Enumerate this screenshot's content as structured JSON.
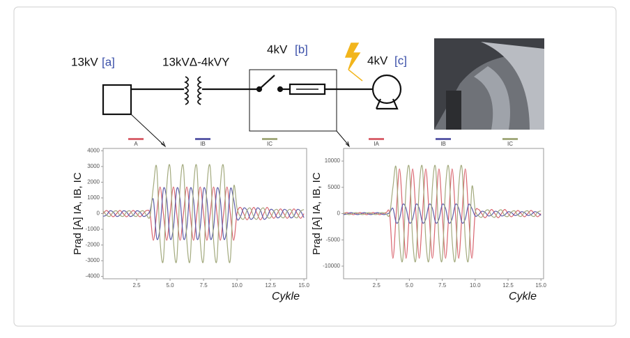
{
  "diagram": {
    "source_voltage": "13kV",
    "source_tag": "[a]",
    "transformer": "13kVΔ-4kVY",
    "switch_voltage": "4kV",
    "switch_tag": "[b]",
    "motor_voltage": "4kV",
    "motor_tag": "[c]"
  },
  "chart_data": [
    {
      "type": "line",
      "ylabel": "Prąd [A] IA, IB, IC",
      "xlabel": "Cykle",
      "x": [
        0,
        0.25,
        0.5,
        0.75,
        1,
        1.25,
        1.5,
        1.75,
        2,
        2.25,
        2.5,
        2.75,
        3,
        3.25,
        3.5,
        3.75,
        4,
        4.25,
        4.5,
        4.75,
        5,
        5.25,
        5.5,
        5.75,
        6,
        6.25,
        6.5,
        6.75,
        7,
        7.25,
        7.5,
        7.75,
        8,
        8.25,
        8.5,
        8.75,
        9,
        9.25,
        9.5,
        9.75,
        10,
        10.25,
        10.5,
        10.75,
        11,
        11.25,
        11.5,
        11.75,
        12,
        12.25,
        12.5,
        12.75,
        13,
        13.25,
        13.5,
        13.75,
        14,
        14.25,
        14.5,
        14.75,
        15
      ],
      "series": [
        {
          "name": "A",
          "color": "#d9646e",
          "values": [
            0,
            200,
            0,
            -200,
            0,
            200,
            0,
            -200,
            0,
            200,
            0,
            -200,
            0,
            200,
            0,
            -1700,
            0,
            1700,
            0,
            -1700,
            0,
            1700,
            0,
            -1700,
            0,
            1700,
            0,
            -1700,
            0,
            1700,
            0,
            -1700,
            0,
            1700,
            0,
            -1700,
            0,
            1700,
            0,
            -1700,
            0,
            400,
            0,
            -400,
            0,
            400,
            0,
            -400,
            0,
            400,
            0,
            -300,
            0,
            300,
            0,
            -300,
            0,
            300,
            0,
            -300,
            0
          ]
        },
        {
          "name": "IB",
          "color": "#5c5ca8",
          "values": [
            -173,
            -100,
            173,
            100,
            -173,
            -100,
            173,
            100,
            -173,
            -100,
            173,
            100,
            -173,
            -100,
            173,
            900,
            -1559,
            -900,
            1559,
            900,
            -1559,
            -900,
            1559,
            900,
            -1559,
            -900,
            1559,
            900,
            -1559,
            -900,
            1559,
            900,
            -1559,
            -900,
            1559,
            900,
            -1559,
            -900,
            1559,
            900,
            -346,
            -200,
            346,
            200,
            -346,
            -200,
            346,
            200,
            -346,
            -200,
            260,
            150,
            -260,
            -150,
            260,
            150,
            -260,
            -150,
            260,
            150,
            -260
          ]
        },
        {
          "name": "IC",
          "color": "#a3aa7e",
          "values": [
            173,
            -100,
            -173,
            100,
            173,
            -100,
            -173,
            100,
            173,
            -100,
            -173,
            100,
            173,
            -100,
            -173,
            1700,
            2944,
            -1700,
            -2944,
            1700,
            2944,
            -1700,
            -2944,
            1700,
            2944,
            -1700,
            -2944,
            1700,
            2944,
            -1700,
            -2944,
            1700,
            2944,
            -1700,
            -2944,
            1700,
            2944,
            -1700,
            -2944,
            1700,
            346,
            -200,
            -346,
            200,
            346,
            -200,
            -346,
            200,
            346,
            -200,
            -260,
            150,
            260,
            -150,
            -260,
            150,
            260,
            -150,
            -260,
            150,
            260
          ]
        }
      ],
      "xlim": [
        0,
        15.2
      ],
      "xticks": [
        {
          "value": 2.5,
          "label": "2.5"
        },
        {
          "value": 5,
          "label": "5.0"
        },
        {
          "value": 7.5,
          "label": "7.5"
        },
        {
          "value": 10,
          "label": "10.0"
        },
        {
          "value": 12.5,
          "label": "12.5"
        },
        {
          "value": 15,
          "label": "15.0"
        }
      ],
      "ylim": [
        -4150,
        4150
      ],
      "yticks": [
        -4000,
        -3000,
        -2000,
        -1000,
        0,
        1000,
        2000,
        3000,
        4000
      ]
    },
    {
      "type": "line",
      "ylabel": "Prąd [A] IA, IB, IC",
      "xlabel": "Cykle",
      "x": [
        0,
        0.25,
        0.5,
        0.75,
        1,
        1.25,
        1.5,
        1.75,
        2,
        2.25,
        2.5,
        2.75,
        3,
        3.25,
        3.5,
        3.75,
        4,
        4.25,
        4.5,
        4.75,
        5,
        5.25,
        5.5,
        5.75,
        6,
        6.25,
        6.5,
        6.75,
        7,
        7.25,
        7.5,
        7.75,
        8,
        8.25,
        8.5,
        8.75,
        9,
        9.25,
        9.5,
        9.75,
        10,
        10.25,
        10.5,
        10.75,
        11,
        11.25,
        11.5,
        11.75,
        12,
        12.25,
        12.5,
        12.75,
        13,
        13.25,
        13.5,
        13.75,
        14,
        14.25,
        14.5,
        14.75,
        15
      ],
      "series": [
        {
          "name": "IA",
          "color": "#d9646e",
          "values": [
            0,
            200,
            0,
            -200,
            0,
            200,
            0,
            -200,
            0,
            200,
            0,
            -200,
            0,
            200,
            0,
            -8500,
            0,
            8500,
            0,
            -8500,
            0,
            8500,
            0,
            -8500,
            0,
            8500,
            0,
            -8500,
            0,
            8500,
            0,
            -8500,
            0,
            8500,
            0,
            -8500,
            0,
            8500,
            0,
            -8500,
            0,
            800,
            0,
            -800,
            0,
            800,
            0,
            -800,
            0,
            800,
            0,
            -600,
            0,
            600,
            0,
            -600,
            0,
            600,
            0,
            -600,
            0
          ]
        },
        {
          "name": "IB",
          "color": "#5c5ca8",
          "values": [
            -173,
            -100,
            173,
            100,
            -173,
            -100,
            173,
            100,
            -173,
            -100,
            173,
            100,
            -173,
            -100,
            173,
            1000,
            -1732,
            -1000,
            1732,
            1000,
            -1732,
            -1000,
            1732,
            1000,
            -1732,
            -1000,
            1732,
            1000,
            -1732,
            -1000,
            1732,
            1000,
            -1732,
            -1000,
            1732,
            1000,
            -1732,
            -1000,
            1732,
            1000,
            -433,
            -250,
            433,
            250,
            -433,
            -250,
            433,
            250,
            -433,
            -250,
            346,
            200,
            -346,
            -200,
            346,
            200,
            -346,
            -200,
            346,
            200,
            -346
          ]
        },
        {
          "name": "IC",
          "color": "#a3aa7e",
          "values": [
            173,
            -100,
            -173,
            100,
            173,
            -100,
            -173,
            100,
            173,
            -100,
            -173,
            100,
            173,
            -100,
            -173,
            5000,
            8660,
            -5000,
            -8660,
            5000,
            8660,
            -5000,
            -8660,
            5000,
            8660,
            -5000,
            -8660,
            5000,
            8660,
            -5000,
            -8660,
            5000,
            8660,
            -5000,
            -8660,
            5000,
            8660,
            -5000,
            -8660,
            5000,
            693,
            -400,
            -693,
            400,
            693,
            -400,
            -693,
            400,
            693,
            -400,
            -520,
            300,
            520,
            -300,
            -520,
            300,
            520,
            -300,
            -520,
            300,
            520
          ]
        }
      ],
      "xlim": [
        0,
        15.2
      ],
      "xticks": [
        {
          "value": 2.5,
          "label": "2.5"
        },
        {
          "value": 5,
          "label": "5.0"
        },
        {
          "value": 7.5,
          "label": "7.5"
        },
        {
          "value": 10,
          "label": "10.0"
        },
        {
          "value": 12.5,
          "label": "12.5"
        },
        {
          "value": 15,
          "label": "15.0"
        }
      ],
      "ylim": [
        -12400,
        12400
      ],
      "yticks": [
        -10000,
        -5000,
        0,
        5000,
        10000
      ]
    }
  ]
}
